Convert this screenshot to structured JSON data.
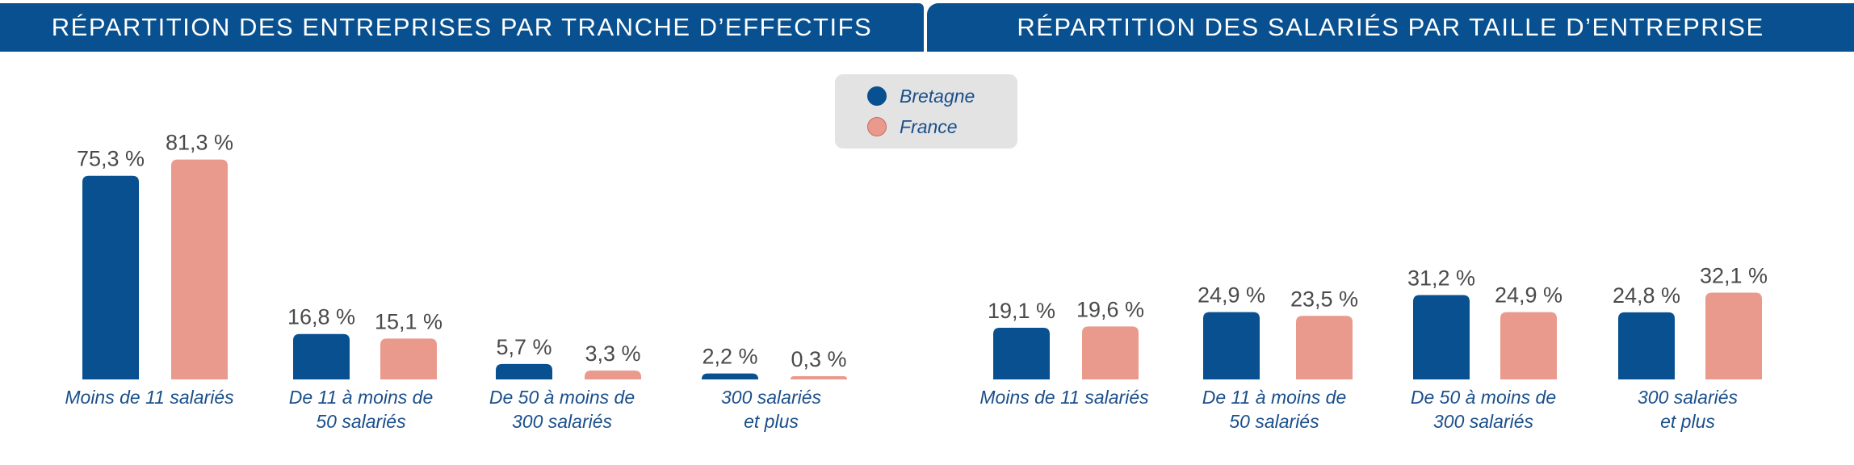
{
  "headers": {
    "left": "RÉPARTITION DES ENTREPRISES PAR TRANCHE D’EFFECTIFS",
    "right": "RÉPARTITION DES SALARIÉS PAR TAILLE D’ENTREPRISE"
  },
  "legend": [
    {
      "name": "Bretagne",
      "color": "#08508f"
    },
    {
      "name": "France",
      "color": "#e99a8c"
    }
  ],
  "chart_data": [
    {
      "type": "bar",
      "title": "RÉPARTITION DES ENTREPRISES PAR TRANCHE D’EFFECTIFS",
      "categories": [
        [
          "Moins de 11 salariés"
        ],
        [
          "De 11 à moins de",
          "50 salariés"
        ],
        [
          "De 50 à moins de",
          "300 salariés"
        ],
        [
          "300 salariés",
          "et plus"
        ]
      ],
      "series": [
        {
          "name": "Bretagne",
          "color": "#08508f",
          "values": [
            75.3,
            16.8,
            5.7,
            2.2
          ],
          "labels": [
            "75,3 %",
            "16,8 %",
            "5,7 %",
            "2,2 %"
          ]
        },
        {
          "name": "France",
          "color": "#e99a8c",
          "values": [
            81.3,
            15.1,
            3.3,
            0.3
          ],
          "labels": [
            "81,3 %",
            "15,1 %",
            "3,3 %",
            "0,3 %"
          ]
        }
      ],
      "unit": "%",
      "ylim": [
        0,
        100
      ],
      "grid": false
    },
    {
      "type": "bar",
      "title": "RÉPARTITION DES SALARIÉS PAR TAILLE D’ENTREPRISE",
      "categories": [
        [
          "Moins de 11 salariés"
        ],
        [
          "De 11 à moins de",
          "50 salariés"
        ],
        [
          "De 50 à moins de",
          "300 salariés"
        ],
        [
          "300 salariés",
          "et plus"
        ]
      ],
      "series": [
        {
          "name": "Bretagne",
          "color": "#08508f",
          "values": [
            19.1,
            24.9,
            31.2,
            24.8
          ],
          "labels": [
            "19,1 %",
            "24,9 %",
            "31,2 %",
            "24,8 %"
          ]
        },
        {
          "name": "France",
          "color": "#e99a8c",
          "values": [
            19.6,
            23.5,
            24.9,
            32.1
          ],
          "labels": [
            "19,6 %",
            "23,5 %",
            "24,9 %",
            "32,1 %"
          ]
        }
      ],
      "unit": "%",
      "ylim": [
        0,
        100
      ],
      "grid": false
    }
  ]
}
